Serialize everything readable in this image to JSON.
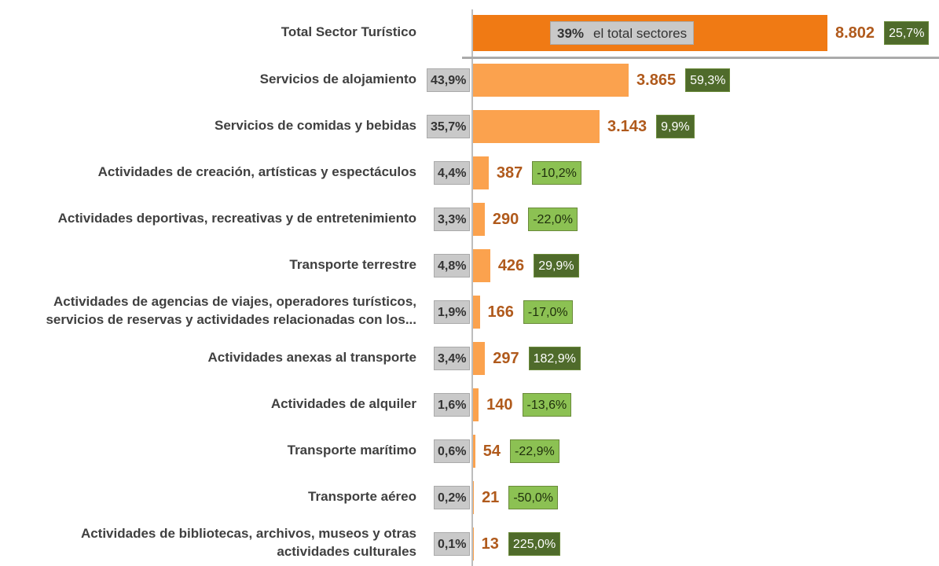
{
  "chart_data": {
    "type": "bar",
    "orientation": "horizontal",
    "categories": [
      "Total Sector Turístico",
      "Servicios de alojamiento",
      "Servicios de comidas y bebidas",
      "Actividades de creación, artísticas y espectáculos",
      "Actividades deportivas, recreativas y de entretenimiento",
      "Transporte terrestre",
      "Actividades de agencias de viajes, operadores turísticos,\nservicios de reservas y actividades relacionadas con los...",
      "Actividades anexas al transporte",
      "Actividades de alquiler",
      "Transporte marítimo",
      "Transporte aéreo",
      "Actividades de bibliotecas, archivos, museos y otras\nactividades culturales"
    ],
    "values": [
      8802,
      3865,
      3143,
      387,
      290,
      426,
      166,
      297,
      140,
      54,
      21,
      13
    ],
    "value_labels": [
      "8.802",
      "3.865",
      "3.143",
      "387",
      "290",
      "426",
      "166",
      "297",
      "140",
      "54",
      "21",
      "13"
    ],
    "total_color": "#f07a14",
    "color": "#fba24e",
    "value_label_color": "#b05a1c",
    "shares": [
      39,
      43.9,
      35.7,
      4.4,
      3.3,
      4.8,
      1.9,
      3.4,
      1.6,
      0.6,
      0.2,
      0.1
    ],
    "share_labels": [
      "39%",
      "43,9%",
      "35,7%",
      "4,4%",
      "3,3%",
      "4,8%",
      "1,9%",
      "3,4%",
      "1,6%",
      "0,6%",
      "0,2%",
      "0,1%"
    ],
    "share_note": "el total sectores",
    "changes": [
      25.7,
      59.3,
      9.9,
      -10.2,
      -22.0,
      29.9,
      -17.0,
      182.9,
      -13.6,
      -22.9,
      -50.0,
      225.0
    ],
    "change_labels": [
      "25,7%",
      "59,3%",
      "9,9%",
      "-10,2%",
      "-22,0%",
      "29,9%",
      "-17,0%",
      "182,9%",
      "-13,6%",
      "-22,9%",
      "-50,0%",
      "225,0%"
    ],
    "positive_color": "#4f6b2b",
    "negative_color": "#8cc153",
    "xlim": [
      0,
      8802
    ]
  }
}
